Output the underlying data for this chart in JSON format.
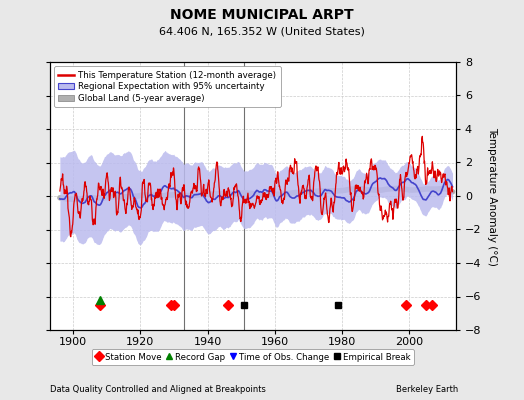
{
  "title": "NOME MUNICIPAL ARPT",
  "subtitle": "64.406 N, 165.352 W (United States)",
  "ylabel": "Temperature Anomaly (°C)",
  "footnote_left": "Data Quality Controlled and Aligned at Breakpoints",
  "footnote_right": "Berkeley Earth",
  "year_start": 1896,
  "year_end": 2013,
  "ylim": [
    -8,
    8
  ],
  "yticks": [
    -8,
    -6,
    -4,
    -2,
    0,
    2,
    4,
    6,
    8
  ],
  "xlim": [
    1893,
    2014
  ],
  "xticks": [
    1900,
    1920,
    1940,
    1960,
    1980,
    2000
  ],
  "background_color": "#e8e8e8",
  "plot_bg_color": "#ffffff",
  "grid_color": "#cccccc",
  "station_color": "#dd0000",
  "regional_color": "#4444cc",
  "regional_fill_color": "#bbbbee",
  "global_color": "#b0b0b0",
  "vertical_line_color": "#707070",
  "legend_labels": [
    "This Temperature Station (12-month average)",
    "Regional Expectation with 95% uncertainty",
    "Global Land (5-year average)"
  ],
  "marker_events": {
    "station_move": [
      1908,
      1929,
      1930,
      1946,
      1999,
      2005,
      2007
    ],
    "record_gap": [
      1908
    ],
    "obs_change": [],
    "empirical_break": [
      1951,
      1979
    ],
    "vertical_lines": [
      1933,
      1951
    ]
  }
}
